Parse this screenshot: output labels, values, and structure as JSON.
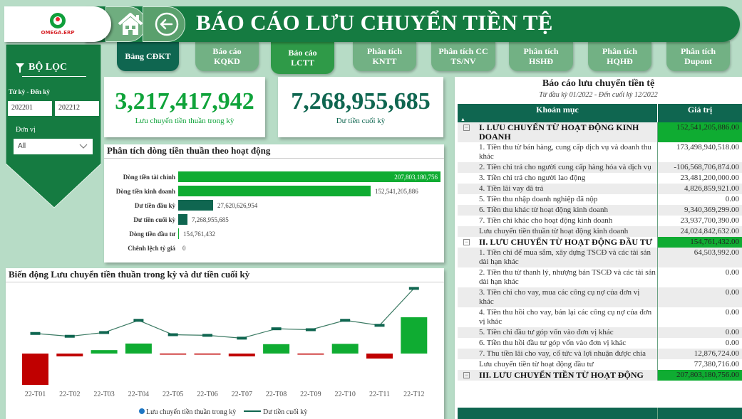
{
  "app": {
    "logo_text": "OMEGA.ERP",
    "title": "BÁO CÁO LƯU CHUYỂN TIỀN TỆ",
    "colors": {
      "primary": "#157b41",
      "dark": "#0f6650",
      "accent_green": "#0fac32",
      "negative_red": "#c00000",
      "background": "#b7dcc6"
    }
  },
  "nav": {
    "home_icon": "home-icon",
    "back_icon": "arrow-left-circle-icon",
    "tabs": [
      {
        "label": "Bảng CĐKT",
        "state": "dark"
      },
      {
        "label": "Báo cáo KQKD",
        "state": "normal"
      },
      {
        "label": "Báo cáo LCTT",
        "state": "active"
      },
      {
        "label": "Phân tích KNTT",
        "state": "normal"
      },
      {
        "label": "Phân tích CC TS/NV",
        "state": "normal"
      },
      {
        "label": "Phân tích HSHĐ",
        "state": "normal"
      },
      {
        "label": "Phân tích HQHĐ",
        "state": "normal"
      },
      {
        "label": "Phân tích Dupont",
        "state": "normal"
      }
    ]
  },
  "filter": {
    "title": "BỘ LỌC",
    "period_label": "Từ kỳ - Đến kỳ",
    "period_from": "202201",
    "period_to": "202212",
    "unit_label": "Đơn vị",
    "unit_value": "All"
  },
  "kpis": [
    {
      "value": "3,217,417,942",
      "label": "Lưu chuyển tiền thuần trong kỳ",
      "color": "#0fa33a"
    },
    {
      "value": "7,268,955,685",
      "label": "Dư tiền cuối kỳ",
      "color": "#0f6650"
    }
  ],
  "bar_chart": {
    "title": "Phân tích dòng tiền thuần theo hoạt động",
    "rows": [
      {
        "label": "Dòng tiền tài chính",
        "value": 207803180756,
        "display": "207,803,180,756",
        "color": "#0fac32"
      },
      {
        "label": "Dòng tiền kinh doanh",
        "value": 152541205886,
        "display": "152,541,205,886",
        "color": "#0fac32"
      },
      {
        "label": "Dư tiền đầu kỳ",
        "value": 27620626954,
        "display": "27,620,626,954",
        "color": "#0f6650"
      },
      {
        "label": "Dư tiền cuối kỳ",
        "value": 7268955685,
        "display": "7,268,955,685",
        "color": "#0f6650"
      },
      {
        "label": "Dòng tiền đầu tư",
        "value": 154761432,
        "display": "154,761,432",
        "color": "#0fac32"
      },
      {
        "label": "Chênh lệch tỷ giá",
        "value": 0,
        "display": "0",
        "color": "#0fac32"
      }
    ]
  },
  "combo_chart": {
    "title": "Biến động Lưu chuyển tiền thuần trong kỳ và dư tiền cuối kỳ",
    "legend": [
      {
        "label": "Lưu chuyển tiền thuần trong kỳ",
        "marker": "dot",
        "color": "#1f77c4"
      },
      {
        "label": "Dư tiền cuối kỳ",
        "marker": "line",
        "color": "#0f6650"
      }
    ]
  },
  "chart_data": [
    {
      "type": "bar",
      "title": "Phân tích dòng tiền thuần theo hoạt động",
      "orientation": "horizontal",
      "categories": [
        "Dòng tiền tài chính",
        "Dòng tiền kinh doanh",
        "Dư tiền đầu kỳ",
        "Dư tiền cuối kỳ",
        "Dòng tiền đầu tư",
        "Chênh lệch tỷ giá"
      ],
      "values": [
        207803180756,
        152541205886,
        27620626954,
        7268955685,
        154761432,
        0
      ],
      "xlabel": "",
      "ylabel": "",
      "grid": false
    },
    {
      "type": "bar",
      "title": "Biến động Lưu chuyển tiền thuần trong kỳ và dư tiền cuối kỳ",
      "categories": [
        "22-T01",
        "22-T02",
        "22-T03",
        "22-T04",
        "22-T05",
        "22-T06",
        "22-T07",
        "22-T08",
        "22-T09",
        "22-T10",
        "22-T11",
        "22-T12"
      ],
      "series": [
        {
          "name": "Lưu chuyển tiền thuần trong kỳ",
          "type": "bar",
          "values": [
            -20.0,
            -1.8,
            2.2,
            6.4,
            -0.3,
            -0.5,
            -1.8,
            6.0,
            -0.3,
            6.2,
            -3.2,
            23.2
          ],
          "unit": "relative"
        },
        {
          "name": "Dư tiền cuối kỳ",
          "type": "line",
          "values": [
            9.2,
            7.4,
            9.8,
            17.6,
            8.4,
            8.0,
            6.2,
            12.2,
            11.6,
            17.6,
            14.4,
            38.0
          ],
          "unit": "relative"
        }
      ],
      "xlabel": "",
      "ylabel": "",
      "grid": false,
      "legend_position": "bottom",
      "colors": {
        "positive": "#0fac32",
        "negative": "#c00000",
        "line": "#0f6650"
      }
    }
  ],
  "table": {
    "title": "Báo cáo lưu chuyển tiền tệ",
    "subtitle": "Từ đầu kỳ 01/2022 - Đến cuối kỳ 12/2022",
    "columns": [
      "Khoản mục",
      "Giá trị"
    ],
    "rows": [
      {
        "type": "section",
        "item": "I. LƯU CHUYỂN TỪ HOẠT ĐỘNG KINH DOANH",
        "value": "152,541,205,886.00"
      },
      {
        "type": "row",
        "item": "1. Tiền thu từ bán hàng, cung cấp dịch vụ và doanh thu khác",
        "value": "173,498,940,518.00"
      },
      {
        "type": "row",
        "item": "2. Tiền chi trả cho người cung cấp hàng hóa và dịch vụ",
        "value": "-106,568,706,874.00"
      },
      {
        "type": "row",
        "item": "3. Tiền chi trả cho người lao động",
        "value": "23,481,200,000.00"
      },
      {
        "type": "row",
        "item": "4. Tiền lãi vay đã trả",
        "value": "4,826,859,921.00"
      },
      {
        "type": "row",
        "item": "5. Tiền thu nhập doanh nghiệp đã nộp",
        "value": "0.00"
      },
      {
        "type": "row",
        "item": "6. Tiền thu khác từ hoạt động kinh doanh",
        "value": "9,340,369,299.00"
      },
      {
        "type": "row",
        "item": "7. Tiền chi khác cho hoạt động kinh doanh",
        "value": "23,937,700,390.00"
      },
      {
        "type": "row",
        "item": "Lưu chuyển tiền thuần từ hoạt động kinh doanh",
        "value": "24,024,842,632.00"
      },
      {
        "type": "section",
        "item": "II. LƯU CHUYỂN TỪ HOẠT ĐỘNG ĐẦU TƯ",
        "value": "154,761,432.00"
      },
      {
        "type": "row",
        "item": "1. Tiền chi để mua sắm, xây dựng TSCĐ và các tài sản dài hạn khác",
        "value": "64,503,992.00"
      },
      {
        "type": "row",
        "item": "2. Tiền thu từ thanh lý, nhượng bán TSCĐ và các tài sản dài hạn khác",
        "value": "0.00"
      },
      {
        "type": "row",
        "item": "3. Tiền chi cho vay, mua các công cụ nợ của đơn vị khác",
        "value": "0.00"
      },
      {
        "type": "row",
        "item": "4. Tiền thu hồi cho vay, bán lại các công cụ nợ của đơn vị khác",
        "value": "0.00"
      },
      {
        "type": "row",
        "item": "5. Tiền chi đầu tư góp vốn vào đơn vị khác",
        "value": "0.00"
      },
      {
        "type": "row",
        "item": "6. Tiền thu hồi đầu tư góp vốn vào đơn vị khác",
        "value": "0.00"
      },
      {
        "type": "row",
        "item": "7. Thu tiền lãi cho vay, cổ tức và lợi nhuận được chia",
        "value": "12,876,724.00"
      },
      {
        "type": "row",
        "item": "Lưu chuyển tiền từ hoạt động đầu tư",
        "value": "77,380,716.00"
      },
      {
        "type": "section",
        "item": "III. LƯU CHUYỂN TIỀN TỪ HOẠT ĐỘNG",
        "value": "207,803,180,756.00"
      }
    ]
  }
}
